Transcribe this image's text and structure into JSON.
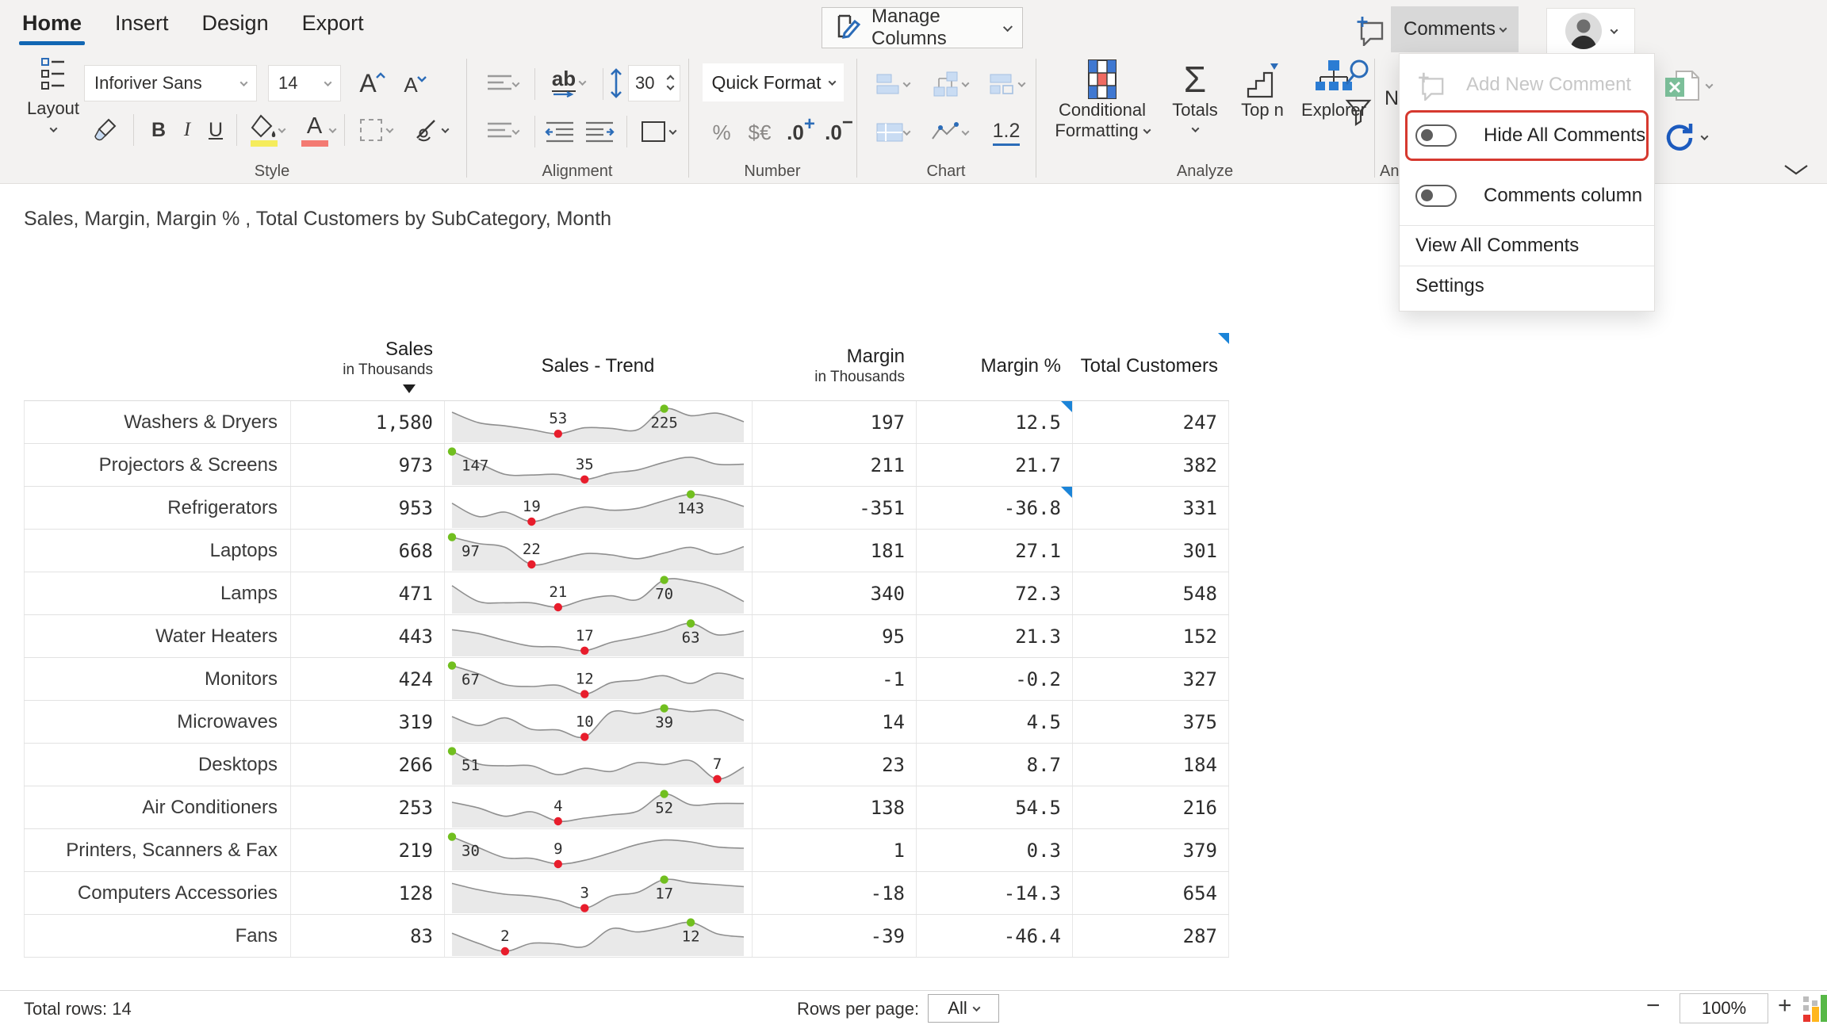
{
  "tabs": [
    {
      "label": "Home",
      "active": true
    },
    {
      "label": "Insert",
      "active": false
    },
    {
      "label": "Design",
      "active": false
    },
    {
      "label": "Export",
      "active": false
    }
  ],
  "topbar": {
    "manage_columns": "Manage Columns",
    "comments": "Comments"
  },
  "ribbon": {
    "layout": "Layout",
    "style": {
      "group": "Style",
      "font_name": "Inforiver Sans",
      "font_size": "14",
      "grow_font": "A",
      "shrink_font": "A",
      "bold": "B",
      "italic": "I",
      "underline": "U",
      "font_color_letter": "A"
    },
    "alignment": {
      "group": "Alignment",
      "wrap": "ab",
      "row_height": "30"
    },
    "number": {
      "group": "Number",
      "quick_format": "Quick Format",
      "percent": "%",
      "currency": "$€",
      "inc_decimal": ".0",
      "inc_sign": "+",
      "dec_decimal": ".0",
      "dec_sign": "−"
    },
    "chart": {
      "group": "Chart",
      "decimal_places": "1.2"
    },
    "analyze": {
      "group": "Analyze",
      "sigma": "Σ",
      "conditional_line1": "Conditional",
      "conditional_line2": "Formatting",
      "totals": "Totals",
      "top_n": "Top n",
      "explorer": "Explorer"
    },
    "annotate_partial": {
      "letter": "N",
      "group_partial": "An"
    }
  },
  "menu": {
    "items": [
      {
        "id": "add-new-comment",
        "label": "Add New Comment",
        "disabled": true
      },
      {
        "id": "hide-all-comments",
        "label": "Hide All Comments",
        "toggle": "off",
        "highlighted": true
      },
      {
        "id": "comments-column",
        "label": "Comments column",
        "toggle": "off"
      },
      {
        "id": "view-all-comments",
        "label": "View All Comments"
      },
      {
        "id": "settings",
        "label": "Settings"
      }
    ],
    "highlight_color": "#d6392f"
  },
  "title": "Sales, Margin, Margin % , Total Customers by SubCategory, Month",
  "table": {
    "columns": {
      "sales": {
        "title": "Sales",
        "subtitle": "in Thousands",
        "sorted": "desc"
      },
      "trend": {
        "title": "Sales - Trend"
      },
      "margin": {
        "title": "Margin",
        "subtitle": "in Thousands"
      },
      "margin_pct": {
        "title": "Margin %"
      },
      "customers": {
        "title": "Total Customers",
        "comment_marker": true
      }
    },
    "rows": [
      {
        "label": "Washers & Dryers",
        "sales": "1,580",
        "margin": "197",
        "margin_pct": "12.5",
        "customers": "247",
        "pct_comment_marker": true,
        "spark": {
          "points": [
            0.85,
            0.52,
            0.42,
            0.3,
            0.17,
            0.36,
            0.34,
            0.3,
            0.96,
            0.74,
            0.82,
            0.55
          ],
          "min": {
            "label": "53",
            "idx": 4
          },
          "max": {
            "label": "225",
            "idx": 8
          }
        }
      },
      {
        "label": "Projectors & Screens",
        "sales": "973",
        "margin": "211",
        "margin_pct": "21.7",
        "customers": "382",
        "pct_comment_marker": false,
        "spark": {
          "points": [
            0.96,
            0.6,
            0.24,
            0.22,
            0.24,
            0.08,
            0.28,
            0.38,
            0.62,
            0.78,
            0.56,
            0.56
          ],
          "min": {
            "label": "35",
            "idx": 5
          },
          "max": {
            "label": "147",
            "idx": 0
          }
        }
      },
      {
        "label": "Refrigerators",
        "sales": "953",
        "margin": "-351",
        "margin_pct": "-36.8",
        "customers": "331",
        "pct_comment_marker": true,
        "spark": {
          "points": [
            0.68,
            0.26,
            0.4,
            0.1,
            0.34,
            0.56,
            0.46,
            0.52,
            0.76,
            0.96,
            0.84,
            0.58
          ],
          "min": {
            "label": "19",
            "idx": 3
          },
          "max": {
            "label": "143",
            "idx": 9
          }
        }
      },
      {
        "label": "Laptops",
        "sales": "668",
        "margin": "181",
        "margin_pct": "27.1",
        "customers": "301",
        "pct_comment_marker": false,
        "spark": {
          "points": [
            0.96,
            0.76,
            0.64,
            0.1,
            0.24,
            0.44,
            0.4,
            0.28,
            0.46,
            0.64,
            0.42,
            0.66
          ],
          "min": {
            "label": "22",
            "idx": 3
          },
          "max": {
            "label": "97",
            "idx": 0
          }
        }
      },
      {
        "label": "Lamps",
        "sales": "471",
        "margin": "340",
        "margin_pct": "72.3",
        "customers": "548",
        "pct_comment_marker": false,
        "spark": {
          "points": [
            0.78,
            0.28,
            0.24,
            0.24,
            0.1,
            0.34,
            0.46,
            0.34,
            0.96,
            0.92,
            0.7,
            0.28
          ],
          "min": {
            "label": "21",
            "idx": 4
          },
          "max": {
            "label": "70",
            "idx": 8
          }
        }
      },
      {
        "label": "Water Heaters",
        "sales": "443",
        "margin": "95",
        "margin_pct": "21.3",
        "customers": "152",
        "pct_comment_marker": false,
        "spark": {
          "points": [
            0.74,
            0.62,
            0.4,
            0.22,
            0.2,
            0.08,
            0.34,
            0.5,
            0.7,
            0.94,
            0.58,
            0.7
          ],
          "min": {
            "label": "17",
            "idx": 5
          },
          "max": {
            "label": "63",
            "idx": 9
          }
        }
      },
      {
        "label": "Monitors",
        "sales": "424",
        "margin": "-1",
        "margin_pct": "-0.2",
        "customers": "327",
        "pct_comment_marker": false,
        "spark": {
          "points": [
            0.96,
            0.7,
            0.36,
            0.3,
            0.34,
            0.06,
            0.42,
            0.5,
            0.64,
            0.4,
            0.72,
            0.54
          ],
          "min": {
            "label": "12",
            "idx": 5
          },
          "max": {
            "label": "67",
            "idx": 0
          }
        }
      },
      {
        "label": "Microwaves",
        "sales": "319",
        "margin": "14",
        "margin_pct": "4.5",
        "customers": "375",
        "pct_comment_marker": false,
        "spark": {
          "points": [
            0.7,
            0.42,
            0.66,
            0.3,
            0.28,
            0.06,
            0.84,
            0.8,
            0.96,
            0.86,
            0.9,
            0.58
          ],
          "min": {
            "label": "10",
            "idx": 5
          },
          "max": {
            "label": "39",
            "idx": 8
          }
        }
      },
      {
        "label": "Desktops",
        "sales": "266",
        "margin": "23",
        "margin_pct": "8.7",
        "customers": "184",
        "pct_comment_marker": false,
        "spark": {
          "points": [
            0.96,
            0.56,
            0.5,
            0.5,
            0.22,
            0.42,
            0.32,
            0.6,
            0.54,
            0.66,
            0.08,
            0.46
          ],
          "min": {
            "label": "7",
            "idx": 10
          },
          "max": {
            "label": "51",
            "idx": 0
          }
        }
      },
      {
        "label": "Air Conditioners",
        "sales": "253",
        "margin": "138",
        "margin_pct": "54.5",
        "customers": "216",
        "pct_comment_marker": false,
        "spark": {
          "points": [
            0.7,
            0.52,
            0.26,
            0.4,
            0.1,
            0.2,
            0.3,
            0.42,
            0.96,
            0.62,
            0.66,
            0.66
          ],
          "min": {
            "label": "4",
            "idx": 4
          },
          "max": {
            "label": "52",
            "idx": 8
          }
        }
      },
      {
        "label": "Printers, Scanners & Fax",
        "sales": "219",
        "margin": "1",
        "margin_pct": "0.3",
        "customers": "379",
        "pct_comment_marker": false,
        "spark": {
          "points": [
            0.96,
            0.62,
            0.3,
            0.28,
            0.1,
            0.22,
            0.46,
            0.72,
            0.86,
            0.8,
            0.64,
            0.6
          ],
          "min": {
            "label": "9",
            "idx": 4
          },
          "max": {
            "label": "30",
            "idx": 0
          }
        }
      },
      {
        "label": "Computers Accessories",
        "sales": "128",
        "margin": "-18",
        "margin_pct": "-14.3",
        "customers": "654",
        "pct_comment_marker": false,
        "spark": {
          "points": [
            0.84,
            0.64,
            0.5,
            0.44,
            0.3,
            0.06,
            0.44,
            0.56,
            0.96,
            0.86,
            0.8,
            0.74
          ],
          "min": {
            "label": "3",
            "idx": 5
          },
          "max": {
            "label": "17",
            "idx": 8
          }
        }
      },
      {
        "label": "Fans",
        "sales": "83",
        "margin": "-39",
        "margin_pct": "-46.4",
        "customers": "287",
        "pct_comment_marker": false,
        "spark": {
          "points": [
            0.62,
            0.3,
            0.05,
            0.3,
            0.28,
            0.2,
            0.76,
            0.66,
            0.8,
            0.96,
            0.6,
            0.5
          ],
          "min": {
            "label": "2",
            "idx": 2
          },
          "max": {
            "label": "12",
            "idx": 9
          }
        }
      }
    ],
    "spark_colors": {
      "area": "#e9e9e9",
      "line": "#8f8f8f",
      "max_dot": "#71bf1f",
      "min_dot": "#e81d2c"
    },
    "marker_color": "#1b84d8"
  },
  "footer": {
    "total_rows": "Total rows: 14",
    "rows_per_page_label": "Rows per page:",
    "rows_per_page_value": "All",
    "zoom_out": "−",
    "zoom_level": "100%",
    "zoom_in": "+"
  }
}
